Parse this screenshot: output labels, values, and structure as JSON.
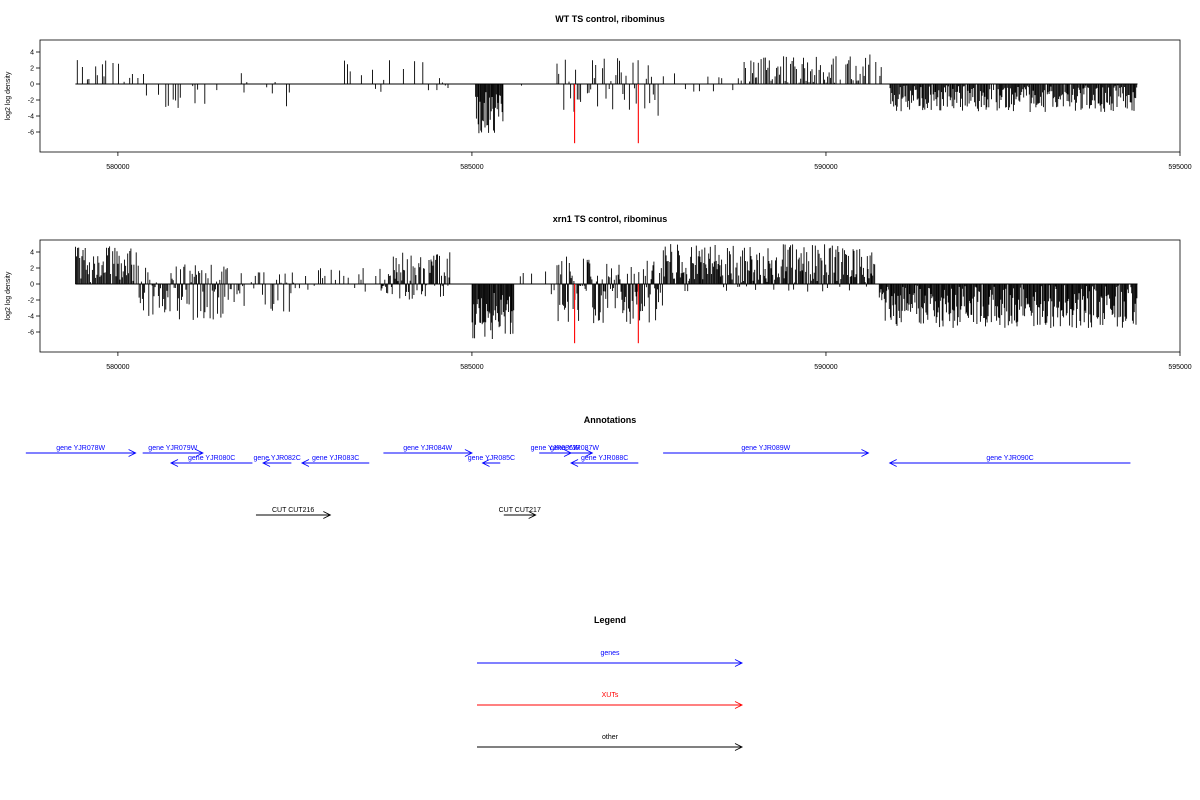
{
  "chart_data": [
    {
      "type": "bar",
      "title": "WT TS control, ribominus",
      "ylabel": "log2 log density",
      "xlabel": "",
      "xlim": [
        578900,
        595000
      ],
      "ylim": [
        -8.5,
        5.5
      ],
      "x_ticks": [
        580000,
        585000,
        590000,
        595000
      ],
      "x_tick_labels": [
        "580000",
        "585000",
        "590000",
        "595000"
      ],
      "y_ticks": [
        4,
        2,
        0,
        -2,
        -4,
        -6
      ],
      "y_tick_labels": [
        "4",
        "2",
        "0",
        "-2",
        "-4",
        "-6"
      ],
      "grid": false,
      "series": [
        {
          "color": "#000000",
          "segments": [
            {
              "start": 579400,
              "end": 579850,
              "min": 0,
              "max": 3,
              "density": 0.5
            },
            {
              "start": 579850,
              "end": 580400,
              "min": 0,
              "max": 3,
              "density": 0.3
            },
            {
              "start": 580400,
              "end": 581500,
              "min": -3,
              "max": 0,
              "density": 0.35
            },
            {
              "start": 581500,
              "end": 582500,
              "min": -3,
              "max": 2,
              "density": 0.3
            },
            {
              "start": 583200,
              "end": 584700,
              "min": -1,
              "max": 3,
              "density": 0.3
            },
            {
              "start": 585050,
              "end": 585450,
              "min": -6.2,
              "max": -1,
              "density": 1.0
            },
            {
              "start": 585450,
              "end": 586200,
              "min": -1,
              "max": 0,
              "density": 0.1
            },
            {
              "start": 586200,
              "end": 587700,
              "min": -4,
              "max": 3.3,
              "density": 0.5
            },
            {
              "start": 587700,
              "end": 588800,
              "min": -1,
              "max": 2,
              "density": 0.3
            },
            {
              "start": 588800,
              "end": 590800,
              "min": 0,
              "max": 3.7,
              "density": 0.6
            },
            {
              "start": 590900,
              "end": 594400,
              "min": -3.5,
              "max": 0,
              "density": 0.9
            }
          ]
        },
        {
          "color": "#ff0000",
          "bars": [
            {
              "x": 586450,
              "y": -7.4
            },
            {
              "x": 587350,
              "y": -7.4
            }
          ]
        }
      ]
    },
    {
      "type": "bar",
      "title": "xrn1 TS control, ribominus",
      "ylabel": "log2 log density",
      "xlabel": "",
      "xlim": [
        578900,
        595000
      ],
      "ylim": [
        -8.5,
        5.5
      ],
      "x_ticks": [
        580000,
        585000,
        590000,
        595000
      ],
      "x_tick_labels": [
        "580000",
        "585000",
        "590000",
        "595000"
      ],
      "y_ticks": [
        4,
        2,
        0,
        -2,
        -4,
        -6
      ],
      "y_tick_labels": [
        "4",
        "2",
        "0",
        "-2",
        "-4",
        "-6"
      ],
      "grid": false,
      "series": [
        {
          "color": "#000000",
          "segments": [
            {
              "start": 579400,
              "end": 580300,
              "min": 0,
              "max": 4.8,
              "density": 0.8
            },
            {
              "start": 580300,
              "end": 581600,
              "min": -4.5,
              "max": 2.5,
              "density": 0.8
            },
            {
              "start": 581600,
              "end": 582500,
              "min": -3.5,
              "max": 1.5,
              "density": 0.6
            },
            {
              "start": 582500,
              "end": 583700,
              "min": -1,
              "max": 2,
              "density": 0.4
            },
            {
              "start": 583700,
              "end": 584700,
              "min": -2,
              "max": 4,
              "density": 0.9
            },
            {
              "start": 585000,
              "end": 585600,
              "min": -7,
              "max": -1,
              "density": 1.0
            },
            {
              "start": 585600,
              "end": 586200,
              "min": -1.5,
              "max": 2,
              "density": 0.3
            },
            {
              "start": 586200,
              "end": 587700,
              "min": -5,
              "max": 3.5,
              "density": 0.9
            },
            {
              "start": 587700,
              "end": 590700,
              "min": -1,
              "max": 5,
              "density": 0.9
            },
            {
              "start": 590750,
              "end": 594400,
              "min": -5.5,
              "max": 0,
              "density": 1.0
            }
          ]
        },
        {
          "color": "#ff0000",
          "bars": [
            {
              "x": 586450,
              "y": -7.4
            },
            {
              "x": 587350,
              "y": -7.4
            }
          ]
        }
      ]
    }
  ],
  "annotations": {
    "title": "Annotations",
    "features": [
      {
        "label": "gene YJR078W",
        "start": 578700,
        "end": 580250,
        "strand": "+",
        "row": 1,
        "color": "#0000ff"
      },
      {
        "label": "gene YJR079W",
        "start": 580350,
        "end": 581200,
        "strand": "+",
        "row": 1,
        "color": "#0000ff"
      },
      {
        "label": "gene YJR080C",
        "start": 580750,
        "end": 581900,
        "strand": "-",
        "row": 2,
        "color": "#0000ff"
      },
      {
        "label": "gene YJR082C",
        "start": 582050,
        "end": 582450,
        "strand": "-",
        "row": 2,
        "color": "#0000ff"
      },
      {
        "label": "gene YJR083C",
        "start": 582600,
        "end": 583550,
        "strand": "-",
        "row": 2,
        "color": "#0000ff"
      },
      {
        "label": "gene YJR084W",
        "start": 583750,
        "end": 585000,
        "strand": "+",
        "row": 1,
        "color": "#0000ff"
      },
      {
        "label": "gene YJR085C",
        "start": 585150,
        "end": 585400,
        "strand": "-",
        "row": 2,
        "color": "#0000ff"
      },
      {
        "label": "gene YJR086W",
        "start": 585950,
        "end": 586400,
        "strand": "+",
        "row": 1,
        "color": "#0000ff"
      },
      {
        "label": "gene YJR087W",
        "start": 586200,
        "end": 586700,
        "strand": "+",
        "row": 1,
        "color": "#0000ff"
      },
      {
        "label": "gene YJR088C",
        "start": 586400,
        "end": 587350,
        "strand": "-",
        "row": 2,
        "color": "#0000ff"
      },
      {
        "label": "gene YJR089W",
        "start": 587700,
        "end": 590600,
        "strand": "+",
        "row": 1,
        "color": "#0000ff"
      },
      {
        "label": "gene YJR090C",
        "start": 590900,
        "end": 594300,
        "strand": "-",
        "row": 2,
        "color": "#0000ff"
      },
      {
        "label": "CUT CUT216",
        "start": 581950,
        "end": 583000,
        "strand": "+",
        "row": 3,
        "color": "#000000"
      },
      {
        "label": "CUT CUT217",
        "start": 585450,
        "end": 585900,
        "strand": "+",
        "row": 3,
        "color": "#000000"
      }
    ]
  },
  "legend": {
    "title": "Legend",
    "items": [
      {
        "label": "genes",
        "color": "#0000ff"
      },
      {
        "label": "XUTs",
        "color": "#ff0000"
      },
      {
        "label": "other",
        "color": "#000000"
      }
    ]
  }
}
